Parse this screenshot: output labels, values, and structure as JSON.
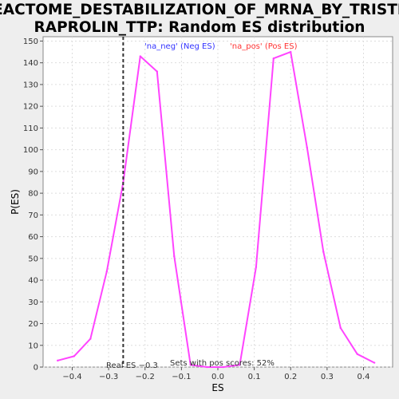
{
  "chart_data": {
    "type": "line",
    "title_lines": [
      "REACTOME_DESTABILIZATION_OF_MRNA_BY_TRISTET",
      "RAPROLIN_TTP: Random ES distribution"
    ],
    "xlabel": "ES",
    "ylabel": "P(ES)",
    "xlim": [
      -0.48,
      0.48
    ],
    "ylim": [
      0,
      152
    ],
    "x_ticks": [
      -0.4,
      -0.3,
      -0.2,
      -0.1,
      0.0,
      0.1,
      0.2,
      0.3,
      0.4
    ],
    "x_tick_labels": [
      "−0.4",
      "−0.3",
      "−0.2",
      "−0.1",
      "0.0",
      "0.1",
      "0.2",
      "0.3",
      "0.4"
    ],
    "y_ticks": [
      0,
      10,
      20,
      30,
      40,
      50,
      60,
      70,
      80,
      90,
      100,
      110,
      120,
      130,
      140,
      150
    ],
    "grid": true,
    "line_color": "#ff44ff",
    "series": [
      {
        "x": [
          -0.44,
          -0.395,
          -0.35,
          -0.305,
          -0.26,
          -0.213,
          -0.167,
          -0.12,
          -0.075,
          -0.03,
          0.015,
          0.06,
          0.105,
          0.153,
          0.2,
          0.245,
          0.29,
          0.337,
          0.383,
          0.43
        ],
        "y": [
          3,
          5,
          13,
          44,
          85,
          143,
          136,
          51,
          1,
          0,
          0,
          1,
          46,
          142,
          145,
          101,
          53,
          18,
          6,
          2
        ]
      }
    ],
    "legend": [
      {
        "label": "'na_neg' (Neg ES)",
        "color": "#3333ff"
      },
      {
        "label": "'na_pos' (Pos ES)",
        "color": "#ff3333"
      }
    ],
    "real_es": {
      "value": -0.26,
      "label": "Real ES −0.3"
    },
    "pos_scores_note": "Sets with pos scores: 52%"
  }
}
